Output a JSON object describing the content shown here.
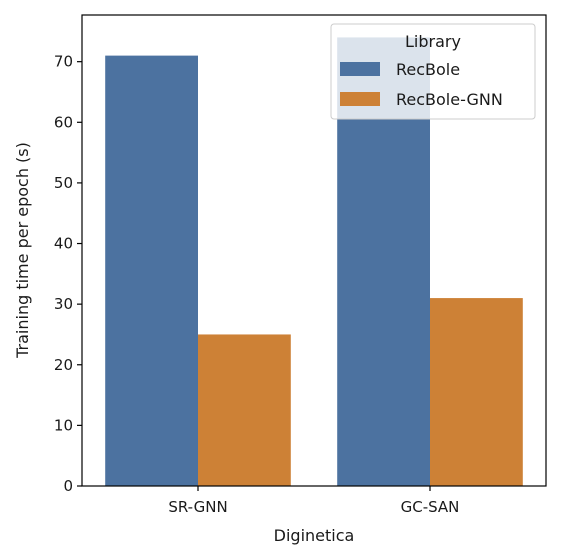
{
  "chart_data": {
    "type": "bar",
    "categories": [
      "SR-GNN",
      "GC-SAN"
    ],
    "series": [
      {
        "name": "RecBole",
        "values": [
          71,
          74
        ],
        "color": "#4c72a0"
      },
      {
        "name": "RecBole-GNN",
        "values": [
          25,
          31
        ],
        "color": "#cd8136"
      }
    ],
    "xlabel": "Diginetica",
    "ylabel": "Training time per epoch (s)",
    "ylim": [
      0,
      77.7
    ],
    "yticks": [
      0,
      10,
      20,
      30,
      40,
      50,
      60,
      70
    ],
    "legend": {
      "title": "Library",
      "placement": "top-right"
    },
    "grid": false
  }
}
